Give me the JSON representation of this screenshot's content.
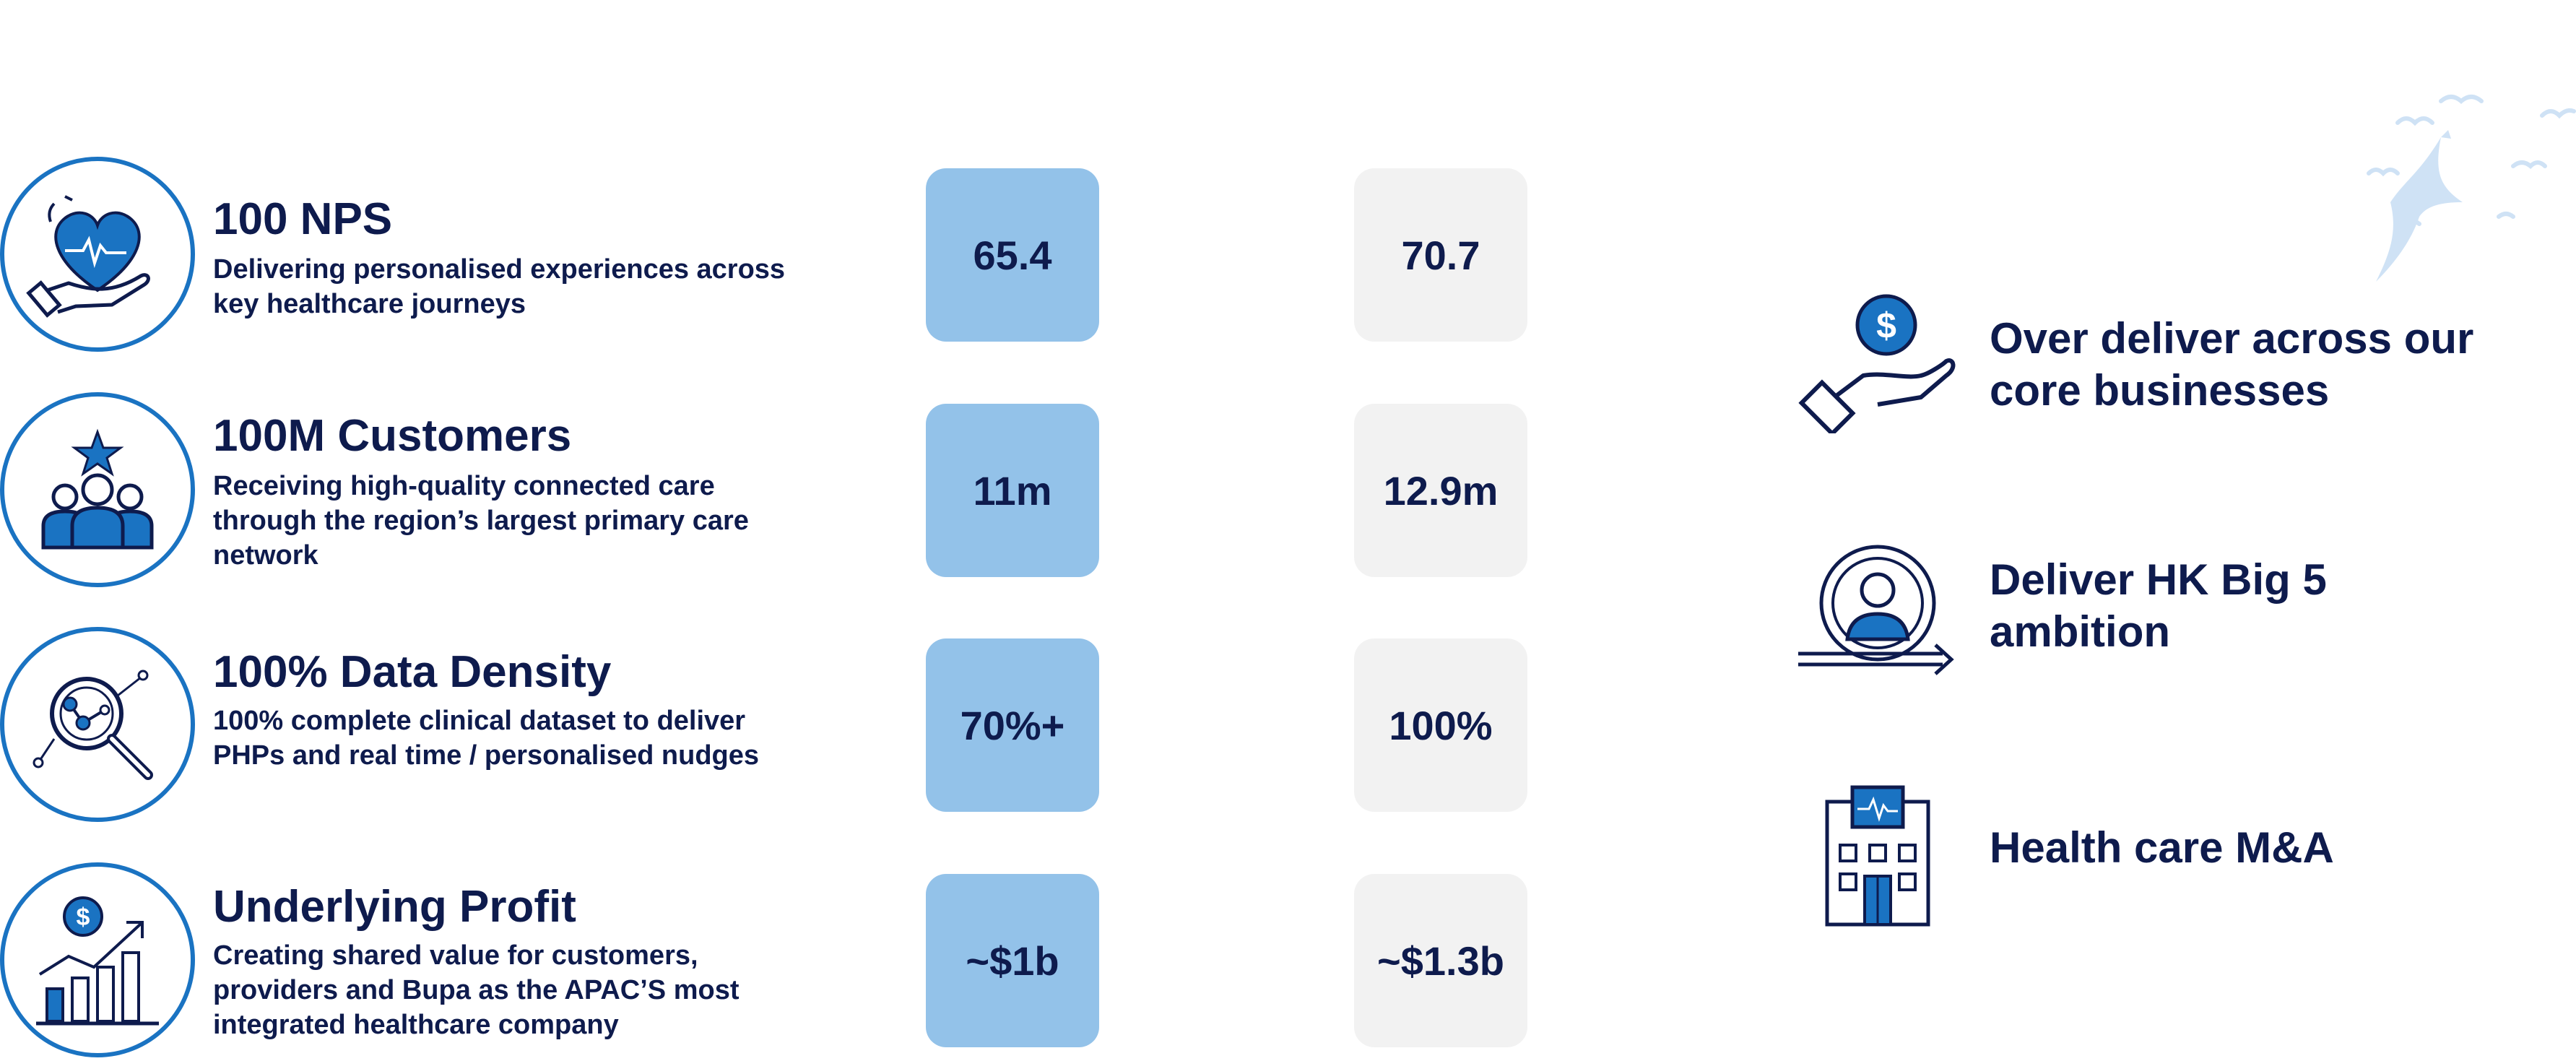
{
  "metrics": [
    {
      "title": "100 NPS",
      "description": "Delivering personalised experiences across key healthcare journeys",
      "icon": "heart-in-hand-icon",
      "value_current": "65.4",
      "value_target": "70.7"
    },
    {
      "title": "100M Customers",
      "description": "Receiving high-quality connected care through the region’s largest primary care network",
      "icon": "customers-group-star-icon",
      "value_current": "11m",
      "value_target": "12.9m"
    },
    {
      "title": "100% Data Density",
      "description": "100% complete clinical dataset to deliver PHPs and real time / personalised nudges",
      "icon": "data-magnifier-icon",
      "value_current": "70%+",
      "value_target": "100%"
    },
    {
      "title": "Underlying Profit",
      "description": "Creating shared value for customers, providers and Bupa as the APAC’S most integrated healthcare company",
      "icon": "profit-growth-chart-icon",
      "value_current": "~$1b",
      "value_target": "~$1.3b"
    }
  ],
  "pillars": [
    {
      "label": "Over deliver across our core businesses",
      "icon": "dollar-in-hand-icon"
    },
    {
      "label": "Deliver HK Big 5 ambition",
      "icon": "person-cycle-arrow-icon"
    },
    {
      "label": "Health care M&A",
      "icon": "hospital-building-icon"
    }
  ],
  "colors": {
    "navy": "#0e1b4d",
    "brand_blue": "#1a73c2",
    "light_blue_box": "#93c2e9",
    "grey_box": "#f2f2f2"
  }
}
